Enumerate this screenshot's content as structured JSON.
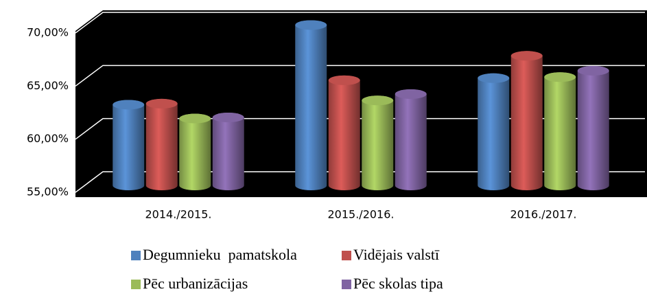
{
  "chart_data": {
    "type": "bar3d",
    "categories": [
      "2014./2015.",
      "2015./2016.",
      "2016./2017."
    ],
    "series": [
      {
        "name": "Degumnieku  pamatskola",
        "color": "#4f81bd",
        "values": [
          62.6,
          70.1,
          65.1
        ]
      },
      {
        "name": "Vidējais valstī",
        "color": "#c0504d",
        "values": [
          62.7,
          64.9,
          67.2
        ]
      },
      {
        "name": "Pēc urbanizācijas",
        "color": "#9bbb59",
        "values": [
          61.3,
          63.0,
          65.2
        ]
      },
      {
        "name": "Pēc skolas tipa",
        "color": "#8064a2",
        "values": [
          61.4,
          63.6,
          65.8
        ]
      }
    ],
    "ylim": [
      55,
      70
    ],
    "yticks": [
      {
        "value": 55,
        "label": "55,00%"
      },
      {
        "value": 60,
        "label": "60,00%"
      },
      {
        "value": 65,
        "label": "65,00%"
      },
      {
        "value": 70,
        "label": "70,00%"
      }
    ],
    "grid": true
  }
}
